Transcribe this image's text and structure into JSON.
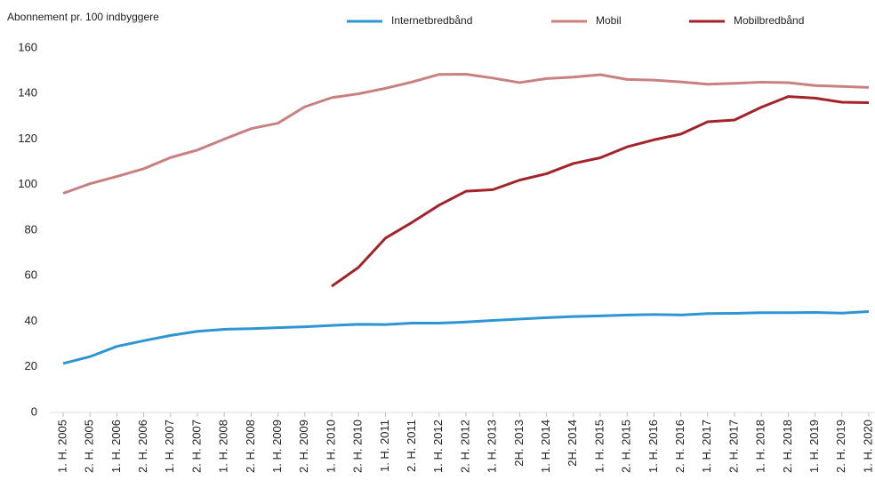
{
  "chart_data": {
    "type": "line",
    "y_label": "Abonnement pr. 100 indbyggere",
    "categories": [
      "1. H. 2005",
      "2. H. 2005",
      "1. H. 2006",
      "2. H. 2006",
      "1. H. 2007",
      "2. H. 2007",
      "1. H. 2008",
      "2. H. 2008",
      "1. H. 2009",
      "2. H. 2009",
      "1. H. 2010",
      "2. H. 2010",
      "1. H. 2011",
      "2. H. 2011",
      "1. H. 2012",
      "2. H. 2012",
      "1. H. 2013",
      "2H. 2013",
      "1. H. 2014",
      "2H. 2014",
      "1. H. 2015",
      "2. H. 2015",
      "1. H. 2016",
      "2. H. 2016",
      "1. H. 2017",
      "2. H. 2017",
      "1. H. 2018",
      "2. H. 2018",
      "1. H. 2019",
      "2. H. 2019",
      "1. H. 2020"
    ],
    "series": [
      {
        "name": "Internetbredbånd",
        "color": "#2e95d3",
        "values": [
          21.5,
          24.5,
          29,
          31.5,
          33.8,
          35.6,
          36.5,
          36.8,
          37.2,
          37.6,
          38.2,
          38.7,
          38.6,
          39.2,
          39.2,
          39.7,
          40.4,
          41,
          41.6,
          42.1,
          42.4,
          42.8,
          43,
          42.8,
          43.4,
          43.5,
          43.8,
          43.8,
          43.9,
          43.6,
          44.3
        ]
      },
      {
        "name": "Mobil",
        "color": "#c98080",
        "values": [
          96.2,
          100.4,
          103.6,
          107,
          111.9,
          115.2,
          120,
          124.6,
          127,
          134.2,
          138.2,
          139.9,
          142.3,
          145.1,
          148.4,
          148.5,
          146.8,
          144.8,
          146.6,
          147.2,
          148.3,
          146.2,
          145.9,
          145.1,
          144.1,
          144.5,
          145,
          144.8,
          143.5,
          143.1,
          142.7
        ]
      },
      {
        "name": "Mobilbredbånd",
        "color": "#a3232a",
        "values": [
          null,
          null,
          null,
          null,
          null,
          null,
          null,
          null,
          null,
          null,
          55.4,
          63.7,
          76.5,
          83.5,
          91,
          97.1,
          97.8,
          102,
          104.8,
          109.3,
          111.8,
          116.6,
          119.7,
          122.2,
          127.6,
          128.4,
          134,
          138.7,
          138,
          136.2,
          136
        ]
      }
    ],
    "ylim": [
      0,
      160
    ],
    "yticks": [
      0,
      20,
      40,
      60,
      80,
      100,
      120,
      140,
      160
    ],
    "legend": "top"
  }
}
